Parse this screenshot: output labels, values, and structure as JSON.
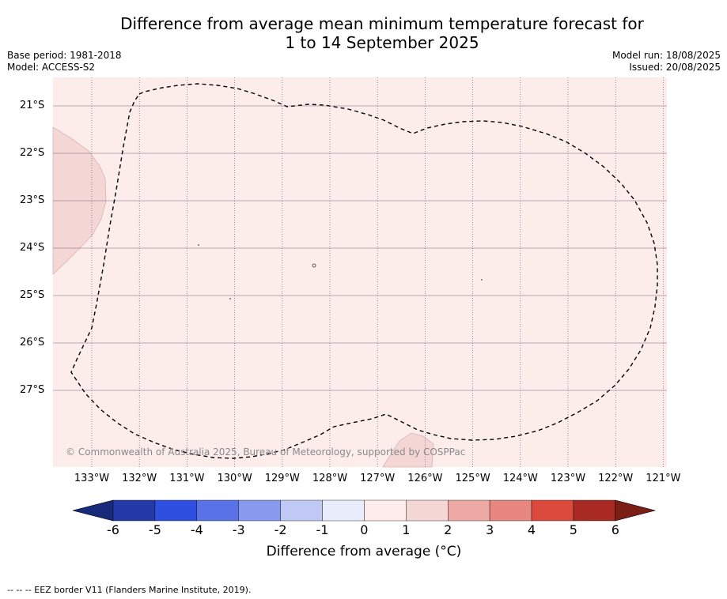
{
  "title_line1": "Difference from average mean minimum temperature forecast for",
  "title_line2": "1 to 14 September 2025",
  "base_period": "Base period: 1981-2018",
  "model": "Model: ACCESS-S2",
  "model_run": "Model run: 18/08/2025",
  "issued": "Issued: 20/08/2025",
  "copyright": "© Commonwealth of Australia 2025, Bureau of Meteorology, supported by COSPPac",
  "lat_labels": [
    "21°S",
    "22°S",
    "23°S",
    "24°S",
    "25°S",
    "26°S",
    "27°S"
  ],
  "lon_labels": [
    "133°W",
    "132°W",
    "131°W",
    "130°W",
    "129°W",
    "128°W",
    "127°W",
    "126°W",
    "125°W",
    "124°W",
    "123°W",
    "122°W",
    "121°W"
  ],
  "colorbar": {
    "ticks": [
      "-6",
      "-5",
      "-4",
      "-3",
      "-2",
      "-1",
      "0",
      "1",
      "2",
      "3",
      "4",
      "5",
      "6"
    ],
    "colors": [
      "#243aa8",
      "#2f4fe0",
      "#5a72e8",
      "#8899ee",
      "#c0c8f6",
      "#e8ecfb",
      "#fdeceb",
      "#f4d6d4",
      "#eda9a4",
      "#e88780",
      "#dc4a3e",
      "#a82a22"
    ],
    "low_extend_color": "#1a2a7a",
    "high_extend_color": "#7a1e16",
    "label": "Difference from average (°C)"
  },
  "map_colors": {
    "background": "#fcecea",
    "land": "#f4d6d4",
    "grid": "#7a5a7a",
    "eez": "#000000"
  },
  "footnote": "-- -- -- EEZ border V11 (Flanders Marine Institute, 2019)."
}
